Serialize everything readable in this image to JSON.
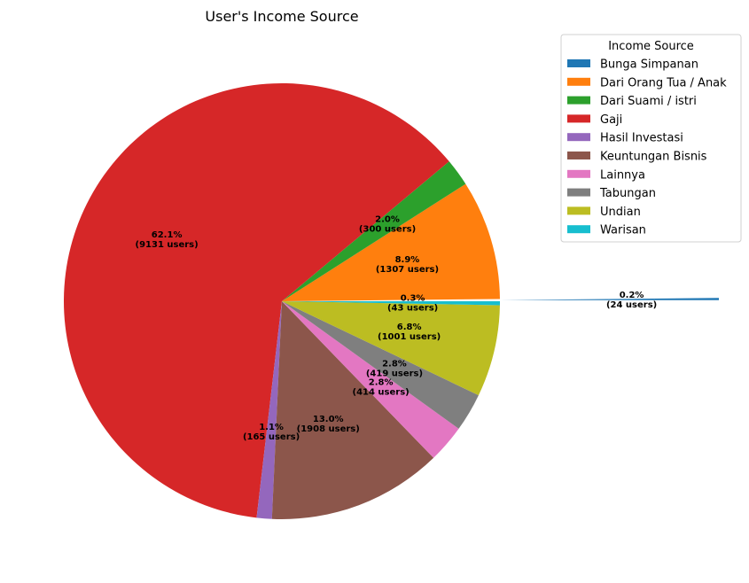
{
  "chart_data": {
    "type": "pie",
    "title": "User's Income Source",
    "legend_title": "Income Source",
    "legend_position": "top-right",
    "start_angle_deg": 0,
    "direction": "counterclockwise",
    "slices": [
      {
        "label": "Bunga Simpanan",
        "value": 24,
        "percent_label": "0.2%",
        "count_label": "(24 users)",
        "color": "#1f77b4",
        "exploded": true
      },
      {
        "label": "Dari Orang Tua / Anak",
        "value": 1307,
        "percent_label": "8.9%",
        "count_label": "(1307 users)",
        "color": "#ff7f0e",
        "exploded": false
      },
      {
        "label": "Dari Suami / istri",
        "value": 300,
        "percent_label": "2.0%",
        "count_label": "(300 users)",
        "color": "#2ca02c",
        "exploded": false
      },
      {
        "label": "Gaji",
        "value": 9131,
        "percent_label": "62.1%",
        "count_label": "(9131 users)",
        "color": "#d62728",
        "exploded": false
      },
      {
        "label": "Hasil Investasi",
        "value": 165,
        "percent_label": "1.1%",
        "count_label": "(165 users)",
        "color": "#9467bd",
        "exploded": false
      },
      {
        "label": "Keuntungan Bisnis",
        "value": 1908,
        "percent_label": "13.0%",
        "count_label": "(1908 users)",
        "color": "#8c564b",
        "exploded": false
      },
      {
        "label": "Lainnya",
        "value": 414,
        "percent_label": "2.8%",
        "count_label": "(414 users)",
        "color": "#e377c2",
        "exploded": false
      },
      {
        "label": "Tabungan",
        "value": 419,
        "percent_label": "2.8%",
        "count_label": "(419 users)",
        "color": "#7f7f7f",
        "exploded": false
      },
      {
        "label": "Undian",
        "value": 1001,
        "percent_label": "6.8%",
        "count_label": "(1001 users)",
        "color": "#bcbd22",
        "exploded": false
      },
      {
        "label": "Warisan",
        "value": 43,
        "percent_label": "0.3%",
        "count_label": "(43 users)",
        "color": "#17becf",
        "exploded": false
      }
    ]
  }
}
